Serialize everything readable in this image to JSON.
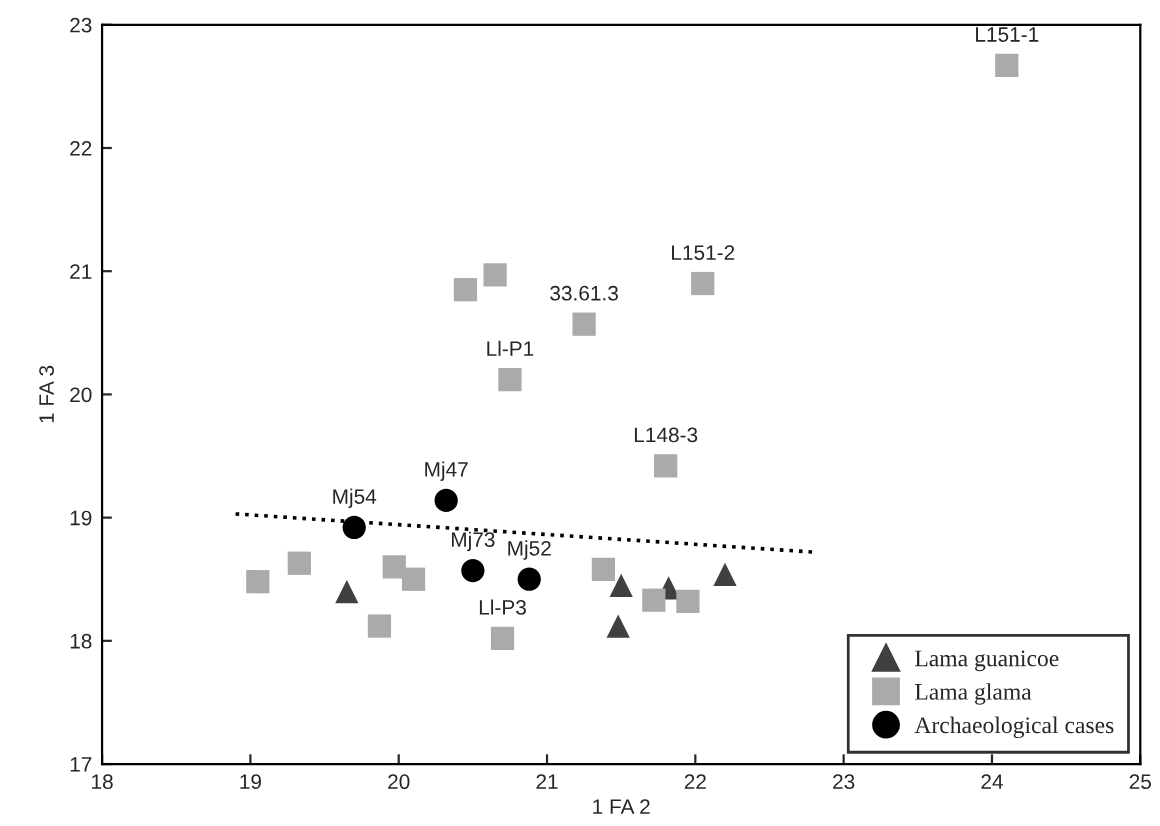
{
  "chart_data": {
    "type": "scatter",
    "xlabel": "1 FA 2",
    "ylabel": "1 FA 3",
    "xlim": [
      18,
      25
    ],
    "ylim": [
      17,
      23
    ],
    "xticks": [
      18,
      19,
      20,
      21,
      22,
      23,
      24,
      25
    ],
    "yticks": [
      17,
      18,
      19,
      20,
      21,
      22,
      23
    ],
    "grid": false,
    "legend": "bottom right",
    "series": [
      {
        "name": "Lama guanicoe",
        "color": "#404040",
        "marker": "triangle",
        "x": [
          19.65,
          21.5,
          21.48,
          21.82,
          22.2
        ],
        "values": [
          18.4,
          18.45,
          18.12,
          18.43,
          18.54
        ]
      },
      {
        "name": "Lama glama",
        "color": "#aaaaaa",
        "marker": "square",
        "x": [
          24.1,
          22.05,
          21.25,
          20.75,
          20.45,
          20.65,
          21.8,
          19.05,
          19.33,
          19.97,
          20.1,
          19.87,
          20.7,
          21.38,
          21.72,
          21.95
        ],
        "values": [
          22.67,
          20.9,
          20.57,
          20.12,
          20.85,
          20.97,
          19.42,
          18.48,
          18.63,
          18.6,
          18.5,
          18.12,
          18.02,
          18.58,
          18.33,
          18.32
        ]
      },
      {
        "name": "Archaeological cases",
        "color": "#000000",
        "marker": "circle",
        "x": [
          19.7,
          20.32,
          20.5,
          20.88
        ],
        "values": [
          18.92,
          19.14,
          18.57,
          18.5
        ]
      },
      {
        "type": "line",
        "color": "#000000",
        "line_style": "dotted",
        "marker": "none",
        "x": [
          18.9,
          22.8
        ],
        "values": [
          19.03,
          18.72
        ]
      }
    ],
    "annotations": [
      {
        "text": "L151-1",
        "x": 24.1,
        "y": 22.67
      },
      {
        "text": "L151-2",
        "x": 22.05,
        "y": 20.9
      },
      {
        "text": "33.61.3",
        "x": 21.25,
        "y": 20.57
      },
      {
        "text": "Ll-P1",
        "x": 20.75,
        "y": 20.12
      },
      {
        "text": "L148-3",
        "x": 21.8,
        "y": 19.42
      },
      {
        "text": "Ll-P3",
        "x": 20.7,
        "y": 18.02
      },
      {
        "text": "Mj54",
        "x": 19.7,
        "y": 18.92
      },
      {
        "text": "Mj47",
        "x": 20.32,
        "y": 19.14
      },
      {
        "text": "Mj73",
        "x": 20.5,
        "y": 18.57
      },
      {
        "text": "Mj52",
        "x": 20.88,
        "y": 18.5
      }
    ]
  }
}
